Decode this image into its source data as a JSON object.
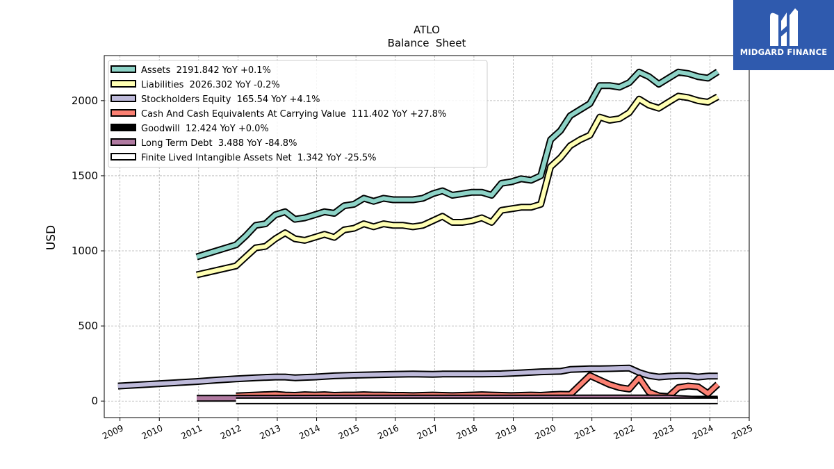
{
  "brand": {
    "name": "MIDGARD FINANCE",
    "box_color": "#2f5aae"
  },
  "chart_data": {
    "type": "line",
    "title": "ATLO",
    "subtitle": "Balance  Sheet",
    "xlabel": "",
    "ylabel": "USD",
    "xlim": [
      2008.6,
      2025.0
    ],
    "ylim": [
      -110,
      2300
    ],
    "x_ticks": [
      "2009",
      "2010",
      "2011",
      "2012",
      "2013",
      "2014",
      "2015",
      "2016",
      "2017",
      "2018",
      "2019",
      "2020",
      "2021",
      "2022",
      "2023",
      "2024",
      "2025"
    ],
    "y_ticks": [
      "0",
      "500",
      "1000",
      "1500",
      "2000"
    ],
    "grid": true,
    "legend_position": "top-left",
    "series": [
      {
        "name": "Assets",
        "legend_label": "Assets  2191.842 YoY +0.1%",
        "color": "#8dd3c7",
        "x": [
          2010.95,
          2011.95,
          2012.2,
          2012.45,
          2012.7,
          2012.95,
          2013.2,
          2013.45,
          2013.7,
          2013.95,
          2014.2,
          2014.45,
          2014.7,
          2014.95,
          2015.2,
          2015.45,
          2015.7,
          2015.95,
          2016.2,
          2016.45,
          2016.7,
          2016.95,
          2017.2,
          2017.45,
          2017.7,
          2017.95,
          2018.2,
          2018.45,
          2018.7,
          2018.95,
          2019.2,
          2019.45,
          2019.7,
          2019.95,
          2020.2,
          2020.45,
          2020.7,
          2020.95,
          2021.2,
          2021.45,
          2021.7,
          2021.95,
          2022.2,
          2022.45,
          2022.7,
          2022.95,
          2023.2,
          2023.45,
          2023.7,
          2023.95,
          2024.2
        ],
        "y": [
          960,
          1040,
          1100,
          1170,
          1180,
          1240,
          1260,
          1210,
          1220,
          1240,
          1260,
          1250,
          1300,
          1310,
          1350,
          1330,
          1350,
          1340,
          1340,
          1340,
          1350,
          1380,
          1400,
          1370,
          1380,
          1390,
          1390,
          1370,
          1450,
          1460,
          1480,
          1470,
          1500,
          1740,
          1800,
          1900,
          1940,
          1980,
          2100,
          2100,
          2090,
          2120,
          2190,
          2160,
          2110,
          2150,
          2190,
          2180,
          2160,
          2150,
          2192
        ]
      },
      {
        "name": "Liabilities",
        "legend_label": "Liabilities  2026.302 YoY -0.2%",
        "color": "#ffffb3",
        "x": [
          2010.95,
          2011.95,
          2012.2,
          2012.45,
          2012.7,
          2012.95,
          2013.2,
          2013.45,
          2013.7,
          2013.95,
          2014.2,
          2014.45,
          2014.7,
          2014.95,
          2015.2,
          2015.45,
          2015.7,
          2015.95,
          2016.2,
          2016.45,
          2016.7,
          2016.95,
          2017.2,
          2017.45,
          2017.7,
          2017.95,
          2018.2,
          2018.45,
          2018.7,
          2018.95,
          2019.2,
          2019.45,
          2019.7,
          2019.95,
          2020.2,
          2020.45,
          2020.7,
          2020.95,
          2021.2,
          2021.45,
          2021.7,
          2021.95,
          2022.2,
          2022.45,
          2022.7,
          2022.95,
          2023.2,
          2023.45,
          2023.7,
          2023.95,
          2024.2
        ],
        "y": [
          840,
          900,
          960,
          1020,
          1030,
          1080,
          1120,
          1080,
          1070,
          1090,
          1110,
          1090,
          1140,
          1150,
          1180,
          1160,
          1180,
          1170,
          1170,
          1160,
          1170,
          1200,
          1230,
          1190,
          1190,
          1200,
          1220,
          1190,
          1270,
          1280,
          1290,
          1290,
          1310,
          1560,
          1620,
          1700,
          1740,
          1770,
          1890,
          1870,
          1880,
          1920,
          2010,
          1970,
          1950,
          1990,
          2030,
          2020,
          2000,
          1990,
          2026
        ]
      },
      {
        "name": "Stockholders Equity",
        "legend_label": "Stockholders Equity  165.54 YoY +4.1%",
        "color": "#bebada",
        "x": [
          2008.95,
          2009.95,
          2010.95,
          2011.45,
          2011.95,
          2012.45,
          2012.95,
          2013.2,
          2013.45,
          2013.7,
          2013.95,
          2014.45,
          2014.95,
          2015.45,
          2015.95,
          2016.45,
          2016.95,
          2017.2,
          2017.7,
          2018.2,
          2018.7,
          2019.2,
          2019.7,
          2020.2,
          2020.45,
          2020.95,
          2021.2,
          2021.45,
          2021.95,
          2022.2,
          2022.45,
          2022.7,
          2022.95,
          2023.2,
          2023.45,
          2023.7,
          2023.95,
          2024.2
        ],
        "y": [
          100,
          115,
          130,
          140,
          148,
          155,
          160,
          160,
          155,
          158,
          160,
          168,
          172,
          175,
          178,
          180,
          178,
          180,
          180,
          180,
          182,
          188,
          195,
          198,
          210,
          215,
          215,
          216,
          220,
          190,
          170,
          160,
          165,
          168,
          168,
          160,
          166,
          166
        ]
      },
      {
        "name": "Cash And Cash Equivalents At Carrying Value",
        "legend_label": "Cash And Cash Equivalents At Carrying Value  111.402 YoY +27.8%",
        "color": "#fb8072",
        "x": [
          2011.95,
          2012.45,
          2012.95,
          2013.2,
          2013.45,
          2013.7,
          2013.95,
          2014.2,
          2014.45,
          2014.7,
          2014.95,
          2015.2,
          2015.45,
          2015.7,
          2015.95,
          2016.2,
          2016.45,
          2016.7,
          2016.95,
          2017.2,
          2017.45,
          2017.7,
          2017.95,
          2018.2,
          2018.45,
          2018.7,
          2018.95,
          2019.2,
          2019.45,
          2019.7,
          2019.95,
          2020.2,
          2020.45,
          2020.95,
          2021.2,
          2021.45,
          2021.7,
          2021.95,
          2022.2,
          2022.45,
          2022.7,
          2022.95,
          2023.2,
          2023.45,
          2023.7,
          2023.95,
          2024.2
        ],
        "y": [
          35,
          40,
          45,
          40,
          38,
          42,
          40,
          42,
          38,
          40,
          40,
          42,
          40,
          40,
          38,
          38,
          36,
          38,
          40,
          38,
          36,
          38,
          40,
          42,
          40,
          38,
          36,
          38,
          40,
          38,
          42,
          45,
          44,
          170,
          140,
          110,
          90,
          80,
          155,
          60,
          35,
          30,
          90,
          100,
          95,
          50,
          111
        ]
      },
      {
        "name": "Goodwill",
        "legend_label": "Goodwill  12.424 YoY +0.0%",
        "color": "#000000",
        "x": [
          2011.95,
          2024.2
        ],
        "y": [
          12.4,
          12.4
        ]
      },
      {
        "name": "Long Term Debt",
        "legend_label": "Long Term Debt  3.488 YoY -84.8%",
        "color": "#b07aa1",
        "x": [
          2010.95,
          2012.95,
          2014.95,
          2016.95,
          2018.95,
          2020.95,
          2022.95,
          2024.2
        ],
        "y": [
          18,
          19,
          20,
          20,
          20,
          21,
          21,
          3.5
        ]
      },
      {
        "name": "Finite Lived Intangible Assets Net",
        "legend_label": "Finite Lived Intangible Assets Net  1.342 YoY -25.5%",
        "color": "#ffffff",
        "x": [
          2011.95,
          2013.95,
          2015.95,
          2017.95,
          2018.95,
          2019.95,
          2020.95,
          2022.95,
          2024.2
        ],
        "y": [
          1.5,
          1.4,
          1.3,
          1.3,
          1.3,
          1.4,
          1.5,
          1.5,
          1.3
        ]
      }
    ]
  }
}
